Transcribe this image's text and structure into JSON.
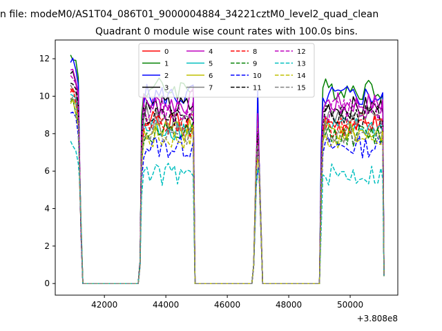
{
  "chart_data": {
    "type": "line",
    "suptitle": "n file: modeM0/AS1T04_086T01_9000004884_34221cztM0_level2_quad_clean",
    "title": "Quadrant 0 module wise count rates with 100.0s bins.",
    "xlabel": "",
    "ylabel": "",
    "offset_text": "+3.808e8",
    "xlim": [
      40400,
      51550
    ],
    "ylim": [
      -0.62,
      13.0
    ],
    "xticks": [
      42000,
      44000,
      46000,
      48000,
      50000
    ],
    "xtick_labels": [
      "42000",
      "44000",
      "46000",
      "48000",
      "50000"
    ],
    "yticks": [
      0,
      2,
      4,
      6,
      8,
      10,
      12
    ],
    "ytick_labels": [
      "0",
      "2",
      "4",
      "6",
      "8",
      "10",
      "12"
    ],
    "grid": false,
    "legend_position": "upper-center",
    "legend_columns": 4,
    "segments": [
      {
        "start": 40900,
        "end": 41300
      },
      {
        "start": 43100,
        "end": 44950
      },
      {
        "start": 46800,
        "end": 47150
      },
      {
        "start": 49000,
        "end": 51100
      }
    ],
    "series": [
      {
        "name": "0",
        "color": "#ff0000",
        "style": "solid",
        "level": 8.6
      },
      {
        "name": "1",
        "color": "#008000",
        "style": "solid",
        "level": 10.4
      },
      {
        "name": "2",
        "color": "#0000ff",
        "style": "solid",
        "level": 10.0
      },
      {
        "name": "3",
        "color": "#000000",
        "style": "solid",
        "level": 9.4
      },
      {
        "name": "4",
        "color": "#bf00bf",
        "style": "solid",
        "level": 9.6
      },
      {
        "name": "5",
        "color": "#00bfbf",
        "style": "solid",
        "level": 8.3
      },
      {
        "name": "6",
        "color": "#bfbf00",
        "style": "solid",
        "level": 8.1
      },
      {
        "name": "7",
        "color": "#808080",
        "style": "solid",
        "level": 8.8
      },
      {
        "name": "8",
        "color": "#ff0000",
        "style": "dashed",
        "level": 8.4
      },
      {
        "name": "9",
        "color": "#008000",
        "style": "dashed",
        "level": 7.9
      },
      {
        "name": "10",
        "color": "#0000ff",
        "style": "dashed",
        "level": 7.3
      },
      {
        "name": "11",
        "color": "#000000",
        "style": "dashed",
        "level": 8.9
      },
      {
        "name": "12",
        "color": "#bf00bf",
        "style": "dashed",
        "level": 9.3
      },
      {
        "name": "13",
        "color": "#00bfbf",
        "style": "dashed",
        "level": 5.8
      },
      {
        "name": "14",
        "color": "#bfbf00",
        "style": "dashed",
        "level": 7.8
      },
      {
        "name": "15",
        "color": "#808080",
        "style": "dashed",
        "level": 8.0
      }
    ]
  }
}
